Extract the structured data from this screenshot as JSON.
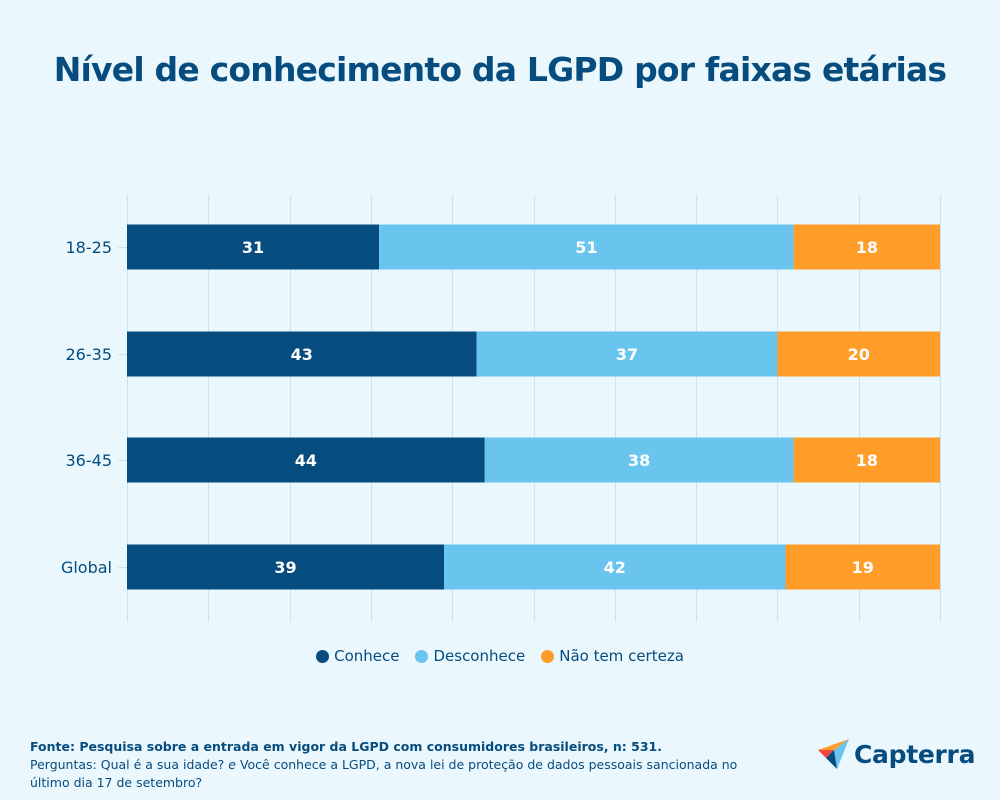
{
  "title": "Nível de conhecimento da LGPD por faixas etárias",
  "chart_data": {
    "type": "bar",
    "orientation": "horizontal",
    "stacked": true,
    "title": "Nível de conhecimento da LGPD por faixas etárias",
    "categories": [
      "18-25",
      "26-35",
      "36-45",
      "Global"
    ],
    "series": [
      {
        "name": "Conhece",
        "color": "#064c7e",
        "values": [
          31,
          43,
          44,
          39
        ]
      },
      {
        "name": "Desconhece",
        "color": "#69c5ee",
        "values": [
          51,
          37,
          38,
          42
        ]
      },
      {
        "name": "Não tem certeza",
        "color": "#ff9d28",
        "values": [
          18,
          20,
          18,
          19
        ]
      }
    ],
    "xlim": [
      0,
      100
    ],
    "x_grid_step": 10,
    "grid": true,
    "xlabel": "",
    "ylabel": "",
    "legend": "bottom-center",
    "data_labels": true
  },
  "legend": [
    {
      "label": "Conhece",
      "color": "#064c7e"
    },
    {
      "label": "Desconhece",
      "color": "#69c5ee"
    },
    {
      "label": "Não tem certeza",
      "color": "#ff9d28"
    }
  ],
  "footer": {
    "source": "Fonte: Pesquisa sobre a entrada em vigor da LGPD com consumidores brasileiros, n: 531.",
    "questions_prefix": "Perguntas: Qual é a sua idade? ",
    "questions_connector": "e",
    "questions_suffix": " Você conhece a LGPD, a nova lei de proteção de dados pessoais sancionada no último dia 17 de setembro?"
  },
  "logo": {
    "text": "Capterra"
  }
}
